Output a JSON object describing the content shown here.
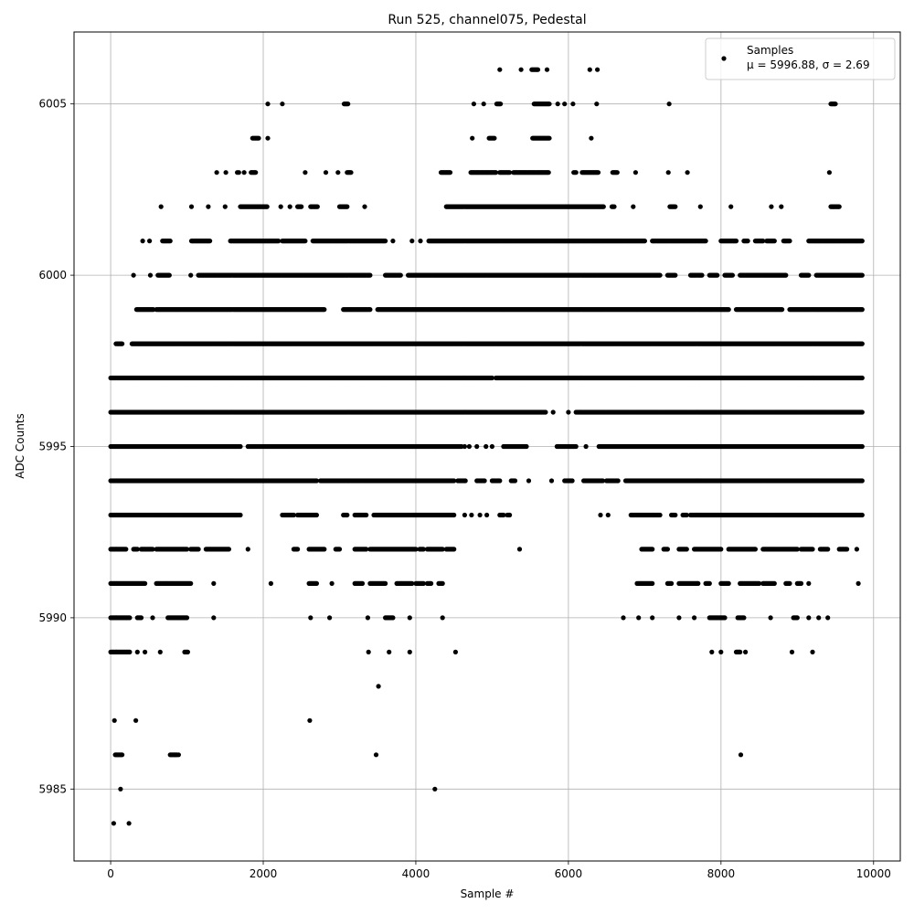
{
  "chart_data": {
    "type": "scatter",
    "title": "Run 525, channel075, Pedestal",
    "xlabel": "Sample #",
    "ylabel": "ADC Counts",
    "xlim": [
      -480,
      10350
    ],
    "ylim": [
      5982.9,
      6007.1
    ],
    "xticks": [
      0,
      2000,
      4000,
      6000,
      8000,
      10000
    ],
    "xtick_labels": [
      "0",
      "2000",
      "4000",
      "6000",
      "8000",
      "10000"
    ],
    "yticks": [
      5985,
      5990,
      5995,
      6000,
      6005
    ],
    "ytick_labels": [
      "5985",
      "5990",
      "5995",
      "6000",
      "6005"
    ],
    "grid": true,
    "marker_color": "#000000",
    "legend": {
      "position": "top-right",
      "name": "Samples",
      "stats_text": "μ = 5996.88, σ = 2.69"
    },
    "series": [
      {
        "name": "Samples",
        "n_samples": 9830,
        "level_ranges": {
          "6006": [
            [
              5100,
              5110
            ],
            [
              5380,
              5390
            ],
            [
              5520,
              5600
            ],
            [
              5720,
              5730
            ],
            [
              6280,
              6290
            ],
            [
              6380,
              6390
            ]
          ],
          "6005": [
            [
              2060,
              2070
            ],
            [
              2250,
              2260
            ],
            [
              3060,
              3110
            ],
            [
              4760,
              4770
            ],
            [
              4890,
              4900
            ],
            [
              5060,
              5110
            ],
            [
              5550,
              5750
            ],
            [
              5860,
              5870
            ],
            [
              5950,
              5960
            ],
            [
              6060,
              6070
            ],
            [
              6370,
              6380
            ],
            [
              7320,
              7330
            ],
            [
              9440,
              9500
            ]
          ],
          "6004": [
            [
              1860,
              1940
            ],
            [
              2060,
              2070
            ],
            [
              4740,
              4750
            ],
            [
              4960,
              5030
            ],
            [
              5530,
              5750
            ],
            [
              6300,
              6310
            ]
          ],
          "6003": [
            [
              1390,
              1400
            ],
            [
              1510,
              1520
            ],
            [
              1660,
              1680
            ],
            [
              1750,
              1760
            ],
            [
              1840,
              1900
            ],
            [
              2550,
              2560
            ],
            [
              2820,
              2830
            ],
            [
              2980,
              2990
            ],
            [
              3100,
              3150
            ],
            [
              4330,
              4450
            ],
            [
              4720,
              5050
            ],
            [
              5100,
              5230
            ],
            [
              5280,
              5740
            ],
            [
              6070,
              6100
            ],
            [
              6180,
              6390
            ],
            [
              6580,
              6640
            ],
            [
              6880,
              6890
            ],
            [
              7310,
              7320
            ],
            [
              7560,
              7570
            ],
            [
              9420,
              9430
            ]
          ],
          "6002": [
            [
              660,
              670
            ],
            [
              1060,
              1070
            ],
            [
              1280,
              1290
            ],
            [
              1500,
              1510
            ],
            [
              1700,
              2050
            ],
            [
              2230,
              2240
            ],
            [
              2350,
              2360
            ],
            [
              2450,
              2500
            ],
            [
              2620,
              2710
            ],
            [
              3000,
              3100
            ],
            [
              3330,
              3340
            ],
            [
              4400,
              6460
            ],
            [
              6570,
              6600
            ],
            [
              6850,
              6860
            ],
            [
              7330,
              7400
            ],
            [
              7730,
              7740
            ],
            [
              8130,
              8140
            ],
            [
              8660,
              8670
            ],
            [
              8790,
              8800
            ],
            [
              9440,
              9550
            ]
          ],
          "6001": [
            [
              420,
              430
            ],
            [
              510,
              520
            ],
            [
              680,
              780
            ],
            [
              1060,
              1300
            ],
            [
              1570,
              2200
            ],
            [
              2250,
              2550
            ],
            [
              2650,
              3600
            ],
            [
              3700,
              3710
            ],
            [
              3950,
              3960
            ],
            [
              4060,
              4070
            ],
            [
              4170,
              7000
            ],
            [
              7100,
              7800
            ],
            [
              8000,
              8200
            ],
            [
              8300,
              8350
            ],
            [
              8450,
              8550
            ],
            [
              8600,
              8700
            ],
            [
              8820,
              8900
            ],
            [
              9150,
              9850
            ]
          ],
          "6000": [
            [
              300,
              310
            ],
            [
              520,
              530
            ],
            [
              620,
              770
            ],
            [
              1050,
              1060
            ],
            [
              1150,
              3400
            ],
            [
              3600,
              3800
            ],
            [
              3900,
              7200
            ],
            [
              7300,
              7400
            ],
            [
              7600,
              7750
            ],
            [
              7850,
              7950
            ],
            [
              8050,
              8150
            ],
            [
              8250,
              8850
            ],
            [
              9050,
              9150
            ],
            [
              9250,
              9850
            ]
          ],
          "5999": [
            [
              340,
              560
            ],
            [
              600,
              2800
            ],
            [
              3050,
              3400
            ],
            [
              3500,
              8100
            ],
            [
              8200,
              8800
            ],
            [
              8900,
              9850
            ]
          ],
          "5998": [
            [
              70,
              150
            ],
            [
              280,
              9850
            ]
          ],
          "5997": [
            [
              0,
              5000
            ],
            [
              5050,
              9850
            ]
          ],
          "5996": [
            [
              0,
              5700
            ],
            [
              5800,
              5810
            ],
            [
              6000,
              6010
            ],
            [
              6100,
              9850
            ]
          ],
          "5995": [
            [
              0,
              1700
            ],
            [
              1800,
              4600
            ],
            [
              4640,
              4650
            ],
            [
              4700,
              4710
            ],
            [
              4800,
              4810
            ],
            [
              4920,
              4930
            ],
            [
              5000,
              5010
            ],
            [
              5150,
              5450
            ],
            [
              5850,
              6100
            ],
            [
              6230,
              6240
            ],
            [
              6400,
              9850
            ]
          ],
          "5994": [
            [
              0,
              2700
            ],
            [
              2750,
              4500
            ],
            [
              4550,
              4650
            ],
            [
              4800,
              4900
            ],
            [
              5000,
              5100
            ],
            [
              5250,
              5300
            ],
            [
              5480,
              5490
            ],
            [
              5780,
              5790
            ],
            [
              5950,
              6050
            ],
            [
              6200,
              6450
            ],
            [
              6500,
              6650
            ],
            [
              6750,
              9850
            ]
          ],
          "5993": [
            [
              0,
              1700
            ],
            [
              2250,
              2400
            ],
            [
              2450,
              2700
            ],
            [
              3050,
              3100
            ],
            [
              3200,
              3350
            ],
            [
              3450,
              4500
            ],
            [
              4640,
              4650
            ],
            [
              4730,
              4740
            ],
            [
              4840,
              4850
            ],
            [
              4930,
              4940
            ],
            [
              5100,
              5150
            ],
            [
              5200,
              5230
            ],
            [
              6420,
              6430
            ],
            [
              6520,
              6530
            ],
            [
              6820,
              7200
            ],
            [
              7350,
              7400
            ],
            [
              7500,
              7550
            ],
            [
              7600,
              9850
            ]
          ],
          "5992": [
            [
              0,
              200
            ],
            [
              300,
              350
            ],
            [
              400,
              550
            ],
            [
              600,
              1000
            ],
            [
              1050,
              1150
            ],
            [
              1250,
              1550
            ],
            [
              1800,
              1810
            ],
            [
              2400,
              2450
            ],
            [
              2600,
              2800
            ],
            [
              2950,
              3000
            ],
            [
              3200,
              3350
            ],
            [
              3400,
              4000
            ],
            [
              4050,
              4100
            ],
            [
              4150,
              4350
            ],
            [
              4400,
              4500
            ],
            [
              5360,
              5370
            ],
            [
              6960,
              7100
            ],
            [
              7250,
              7300
            ],
            [
              7450,
              7550
            ],
            [
              7650,
              8000
            ],
            [
              8100,
              8450
            ],
            [
              8550,
              9000
            ],
            [
              9050,
              9200
            ],
            [
              9300,
              9400
            ],
            [
              9550,
              9650
            ],
            [
              9780,
              9790
            ]
          ],
          "5991": [
            [
              0,
              450
            ],
            [
              600,
              1050
            ],
            [
              1350,
              1360
            ],
            [
              2100,
              2110
            ],
            [
              2600,
              2700
            ],
            [
              2900,
              2910
            ],
            [
              3200,
              3300
            ],
            [
              3400,
              3600
            ],
            [
              3750,
              3950
            ],
            [
              4000,
              4100
            ],
            [
              4150,
              4200
            ],
            [
              4300,
              4350
            ],
            [
              6900,
              7100
            ],
            [
              7300,
              7350
            ],
            [
              7450,
              7700
            ],
            [
              7800,
              7850
            ],
            [
              8000,
              8100
            ],
            [
              8250,
              8500
            ],
            [
              8550,
              8700
            ],
            [
              8850,
              8900
            ],
            [
              9000,
              9050
            ],
            [
              9150,
              9160
            ],
            [
              9800,
              9810
            ]
          ],
          "5990": [
            [
              0,
              250
            ],
            [
              350,
              400
            ],
            [
              550,
              560
            ],
            [
              750,
              1000
            ],
            [
              1350,
              1360
            ],
            [
              2620,
              2630
            ],
            [
              2870,
              2880
            ],
            [
              3370,
              3380
            ],
            [
              3600,
              3700
            ],
            [
              3920,
              3930
            ],
            [
              4350,
              4360
            ],
            [
              6720,
              6730
            ],
            [
              6920,
              6930
            ],
            [
              7100,
              7110
            ],
            [
              7450,
              7460
            ],
            [
              7650,
              7660
            ],
            [
              7850,
              8050
            ],
            [
              8220,
              8300
            ],
            [
              8650,
              8660
            ],
            [
              8950,
              9000
            ],
            [
              9150,
              9160
            ],
            [
              9280,
              9290
            ],
            [
              9400,
              9410
            ]
          ],
          "5989": [
            [
              0,
              250
            ],
            [
              350,
              360
            ],
            [
              450,
              460
            ],
            [
              650,
              660
            ],
            [
              970,
              1010
            ],
            [
              3380,
              3390
            ],
            [
              3650,
              3660
            ],
            [
              3920,
              3930
            ],
            [
              4520,
              4530
            ],
            [
              7880,
              7890
            ],
            [
              8000,
              8010
            ],
            [
              8200,
              8250
            ],
            [
              8320,
              8330
            ],
            [
              8930,
              8940
            ],
            [
              9200,
              9210
            ]
          ],
          "5988": [
            [
              3510,
              3520
            ]
          ],
          "5987": [
            [
              50,
              60
            ],
            [
              330,
              340
            ],
            [
              2610,
              2620
            ]
          ],
          "5986": [
            [
              60,
              150
            ],
            [
              780,
              870
            ],
            [
              890,
              900
            ],
            [
              3480,
              3490
            ],
            [
              8260,
              8270
            ]
          ],
          "5985": [
            [
              130,
              140
            ],
            [
              4250,
              4260
            ]
          ],
          "5984": [
            [
              40,
              50
            ],
            [
              240,
              250
            ]
          ]
        }
      }
    ]
  }
}
